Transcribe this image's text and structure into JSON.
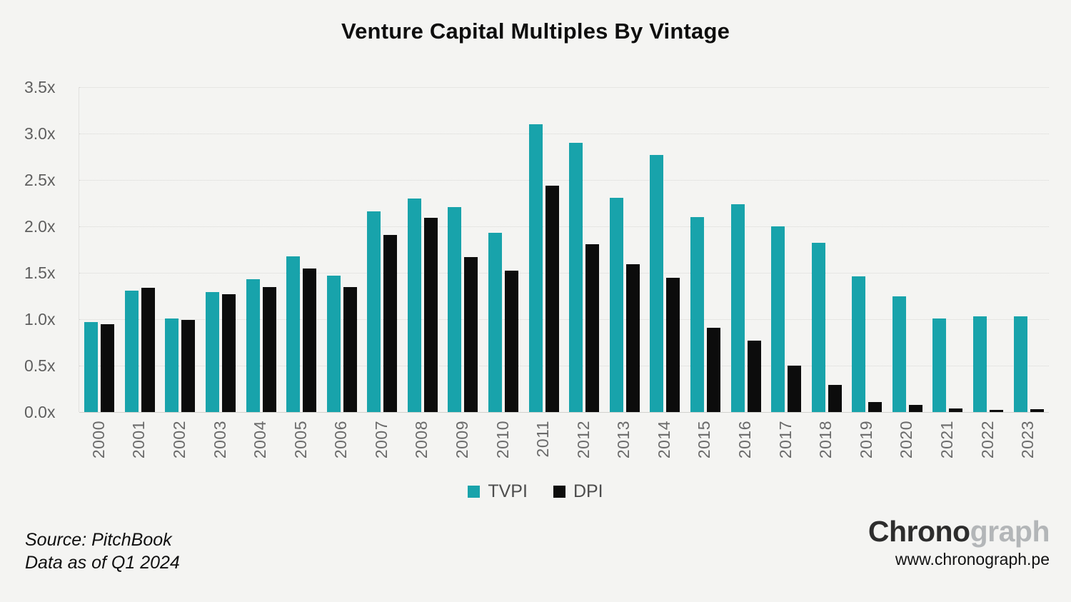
{
  "title": "Venture Capital Multiples By Vintage",
  "legend": [
    {
      "label": "TVPI",
      "color": "#18a3ab"
    },
    {
      "label": "DPI",
      "color": "#0c0c0c"
    }
  ],
  "footer": {
    "source": "Source: PitchBook",
    "data_as_of": "Data as of Q1 2024",
    "brand_primary": "Chrono",
    "brand_secondary": "graph",
    "website": "www.chronograph.pe"
  },
  "colors": {
    "background": "#f4f4f2",
    "tvpi": "#18a3ab",
    "dpi": "#0c0c0c",
    "axis_text": "#5f5f5f",
    "gridline": "#d8d8d5"
  },
  "chart_data": {
    "type": "bar",
    "title": "Venture Capital Multiples By Vintage",
    "categories": [
      "2000",
      "2001",
      "2002",
      "2003",
      "2004",
      "2005",
      "2006",
      "2007",
      "2008",
      "2009",
      "2010",
      "2011",
      "2012",
      "2013",
      "2014",
      "2015",
      "2016",
      "2017",
      "2018",
      "2019",
      "2020",
      "2021",
      "2022",
      "2023"
    ],
    "series": [
      {
        "name": "TVPI",
        "color": "#18a3ab",
        "values": [
          0.97,
          1.31,
          1.01,
          1.29,
          1.43,
          1.68,
          1.47,
          2.16,
          2.3,
          2.21,
          1.93,
          3.1,
          2.9,
          2.31,
          2.77,
          2.1,
          2.24,
          2.0,
          1.82,
          1.46,
          1.25,
          1.01,
          1.03,
          1.03
        ]
      },
      {
        "name": "DPI",
        "color": "#0c0c0c",
        "values": [
          0.95,
          1.34,
          0.99,
          1.27,
          1.35,
          1.55,
          1.35,
          1.91,
          2.09,
          1.67,
          1.52,
          2.44,
          1.81,
          1.59,
          1.45,
          0.91,
          0.77,
          0.5,
          0.29,
          0.11,
          0.08,
          0.04,
          0.02,
          0.03
        ]
      }
    ],
    "xlabel": "",
    "ylabel": "",
    "ylim": [
      0,
      3.5
    ],
    "yticks": [
      "3.5x",
      "3.0x",
      "2.5x",
      "2.0x",
      "1.5x",
      "1.0x",
      "0.5x",
      "0.0x"
    ],
    "grid": true,
    "legend_position": "bottom"
  }
}
